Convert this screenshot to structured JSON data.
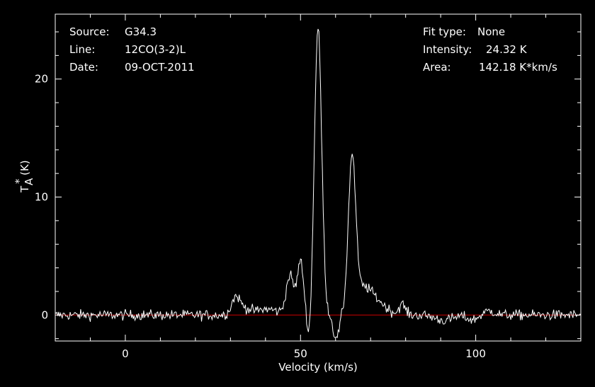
{
  "header_left": {
    "source_label": "Source:",
    "source_value": "G34.3",
    "line_label": "Line:",
    "line_value": "12CO(3-2)L",
    "date_label": "Date:",
    "date_value": "09-OCT-2011"
  },
  "header_right": {
    "fit_label": "Fit type:",
    "fit_value": "None",
    "intensity_label": "Intensity:",
    "intensity_value": "24.32 K",
    "area_label": "Area:",
    "area_value": "142.18 K*km/s"
  },
  "colors": {
    "background": "#000000",
    "spectrum": "#ffffff",
    "baseline": "#cc0000",
    "axes": "#ffffff"
  },
  "chart_data": {
    "type": "line",
    "title": "",
    "xlabel": "Velocity (km/s)",
    "ylabel_main": "T",
    "ylabel_sup": "*",
    "ylabel_sub": "A",
    "ylabel_unit": "(K)",
    "xlim": [
      -20,
      130
    ],
    "ylim": [
      -2.2,
      25.5
    ],
    "xticks": [
      0,
      50,
      100
    ],
    "xtick_labels": [
      "0",
      "50",
      "100"
    ],
    "yticks": [
      0,
      10,
      20
    ],
    "ytick_labels": [
      "0",
      "10",
      "20"
    ],
    "grid": false,
    "baseline": 0,
    "peaks": [
      {
        "center": 31.5,
        "amp": 1.4,
        "sigma": 1.2
      },
      {
        "center": 34,
        "amp": 0.5,
        "sigma": 1.8
      },
      {
        "center": 40.5,
        "amp": 0.5,
        "sigma": 3.0
      },
      {
        "center": 47,
        "amp": 3.3,
        "sigma": 1.1
      },
      {
        "center": 50,
        "amp": 4.5,
        "sigma": 0.9
      },
      {
        "center": 55,
        "amp": 24.3,
        "sigma": 1.05
      },
      {
        "center": 64.7,
        "amp": 12.8,
        "sigma": 1.05
      },
      {
        "center": 68,
        "amp": 2.2,
        "sigma": 2.5
      },
      {
        "center": 72.5,
        "amp": 0.8,
        "sigma": 2.5
      },
      {
        "center": 79,
        "amp": 0.9,
        "sigma": 0.9
      },
      {
        "center": 91,
        "amp": -0.45,
        "sigma": 2.5
      },
      {
        "center": 99,
        "amp": -0.4,
        "sigma": 1.5
      },
      {
        "center": 104,
        "amp": 0.35,
        "sigma": 1.5
      }
    ],
    "absorption": [
      {
        "center": 52.6,
        "amp": -2.5,
        "sigma": 0.7
      },
      {
        "center": 60.2,
        "amp": -2.2,
        "sigma": 0.8
      }
    ],
    "noise_rms": 0.22,
    "channel_width": 0.25
  }
}
